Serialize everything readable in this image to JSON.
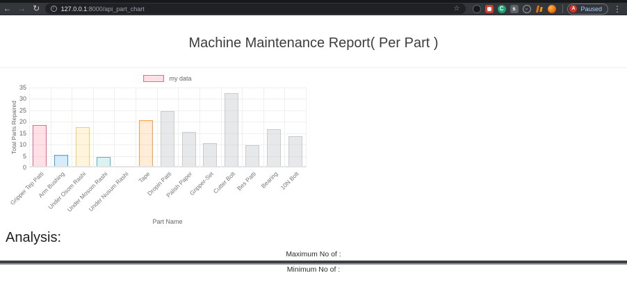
{
  "browser": {
    "url": {
      "host": "127.0.0.1",
      "path": ":8000/api_part_chart"
    },
    "paused_button": {
      "label": "Paused",
      "avatar_letter": "A"
    },
    "icons": {
      "back": "←",
      "forward": "→",
      "reload": "↻",
      "info": "i",
      "star": "☆",
      "menu": "⋮",
      "ext_green_letter": "C",
      "ext_gray_letter": "s",
      "pocket_chevron": "⌄"
    }
  },
  "page": {
    "title": "Machine Maintenance Report( Per Part )",
    "analysis_heading": "Analysis:",
    "maximum_label": "Maximum No of :",
    "minimum_label": "Minimum No of :"
  },
  "chart_data": {
    "type": "bar",
    "legend": [
      "my data"
    ],
    "legend_position": "top",
    "xlabel": "Part Name",
    "ylabel": "Total Parts Repaired",
    "ylim": [
      0,
      35
    ],
    "ytick_step": 5,
    "grid": true,
    "categories": [
      "Gripper Tep Patti",
      "Arm Bushing",
      "Under Osom Rashi",
      "Under Mosom Rashi",
      "Under Nusum Rashi",
      "Tape",
      "Dropin Patti",
      "Palish Paper",
      "Gripper-Set",
      "Cutter Bolt",
      "Bes Patti",
      "Bearing",
      "10N Bolt"
    ],
    "values": [
      18,
      5,
      17,
      4,
      0,
      20,
      24,
      15,
      10,
      32,
      9,
      16,
      13
    ],
    "bar_fill_colors": [
      "rgba(255,99,132,0.2)",
      "rgba(54,162,235,0.2)",
      "rgba(255,206,86,0.2)",
      "rgba(75,192,192,0.2)",
      "rgba(153,102,255,0.2)",
      "rgba(255,159,64,0.2)",
      "rgba(201,203,207,0.45)",
      "rgba(201,203,207,0.45)",
      "rgba(201,203,207,0.45)",
      "rgba(201,203,207,0.45)",
      "rgba(201,203,207,0.45)",
      "rgba(201,203,207,0.45)",
      "rgba(201,203,207,0.45)"
    ],
    "bar_border_colors": [
      "#ff6384",
      "#36a2eb",
      "#ffce56",
      "#4bc0c0",
      "#9966ff",
      "#ff9f40",
      "#c9cbcf",
      "#c9cbcf",
      "#c9cbcf",
      "#c9cbcf",
      "#c9cbcf",
      "#c9cbcf",
      "#c9cbcf"
    ]
  }
}
